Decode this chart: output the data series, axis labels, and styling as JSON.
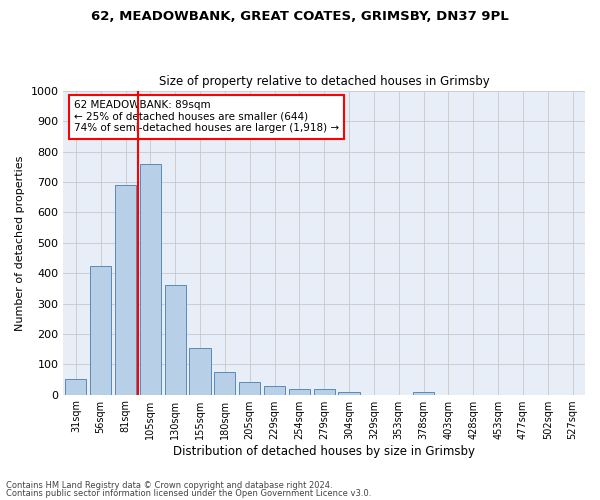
{
  "title1": "62, MEADOWBANK, GREAT COATES, GRIMSBY, DN37 9PL",
  "title2": "Size of property relative to detached houses in Grimsby",
  "xlabel": "Distribution of detached houses by size in Grimsby",
  "ylabel": "Number of detached properties",
  "categories": [
    "31sqm",
    "56sqm",
    "81sqm",
    "105sqm",
    "130sqm",
    "155sqm",
    "180sqm",
    "205sqm",
    "229sqm",
    "254sqm",
    "279sqm",
    "304sqm",
    "329sqm",
    "353sqm",
    "378sqm",
    "403sqm",
    "428sqm",
    "453sqm",
    "477sqm",
    "502sqm",
    "527sqm"
  ],
  "values": [
    52,
    425,
    690,
    760,
    360,
    155,
    75,
    42,
    28,
    18,
    18,
    10,
    0,
    0,
    10,
    0,
    0,
    0,
    0,
    0,
    0
  ],
  "bar_color": "#b8cfe8",
  "bar_edge_color": "#5a8ab8",
  "vline_color": "red",
  "annotation_text": "62 MEADOWBANK: 89sqm\n← 25% of detached houses are smaller (644)\n74% of semi-detached houses are larger (1,918) →",
  "annotation_box_color": "white",
  "annotation_box_edge": "red",
  "ylim": [
    0,
    1000
  ],
  "yticks": [
    0,
    100,
    200,
    300,
    400,
    500,
    600,
    700,
    800,
    900,
    1000
  ],
  "bg_color": "#e8eef8",
  "grid_color": "#c8c8c8",
  "footer1": "Contains HM Land Registry data © Crown copyright and database right 2024.",
  "footer2": "Contains public sector information licensed under the Open Government Licence v3.0."
}
